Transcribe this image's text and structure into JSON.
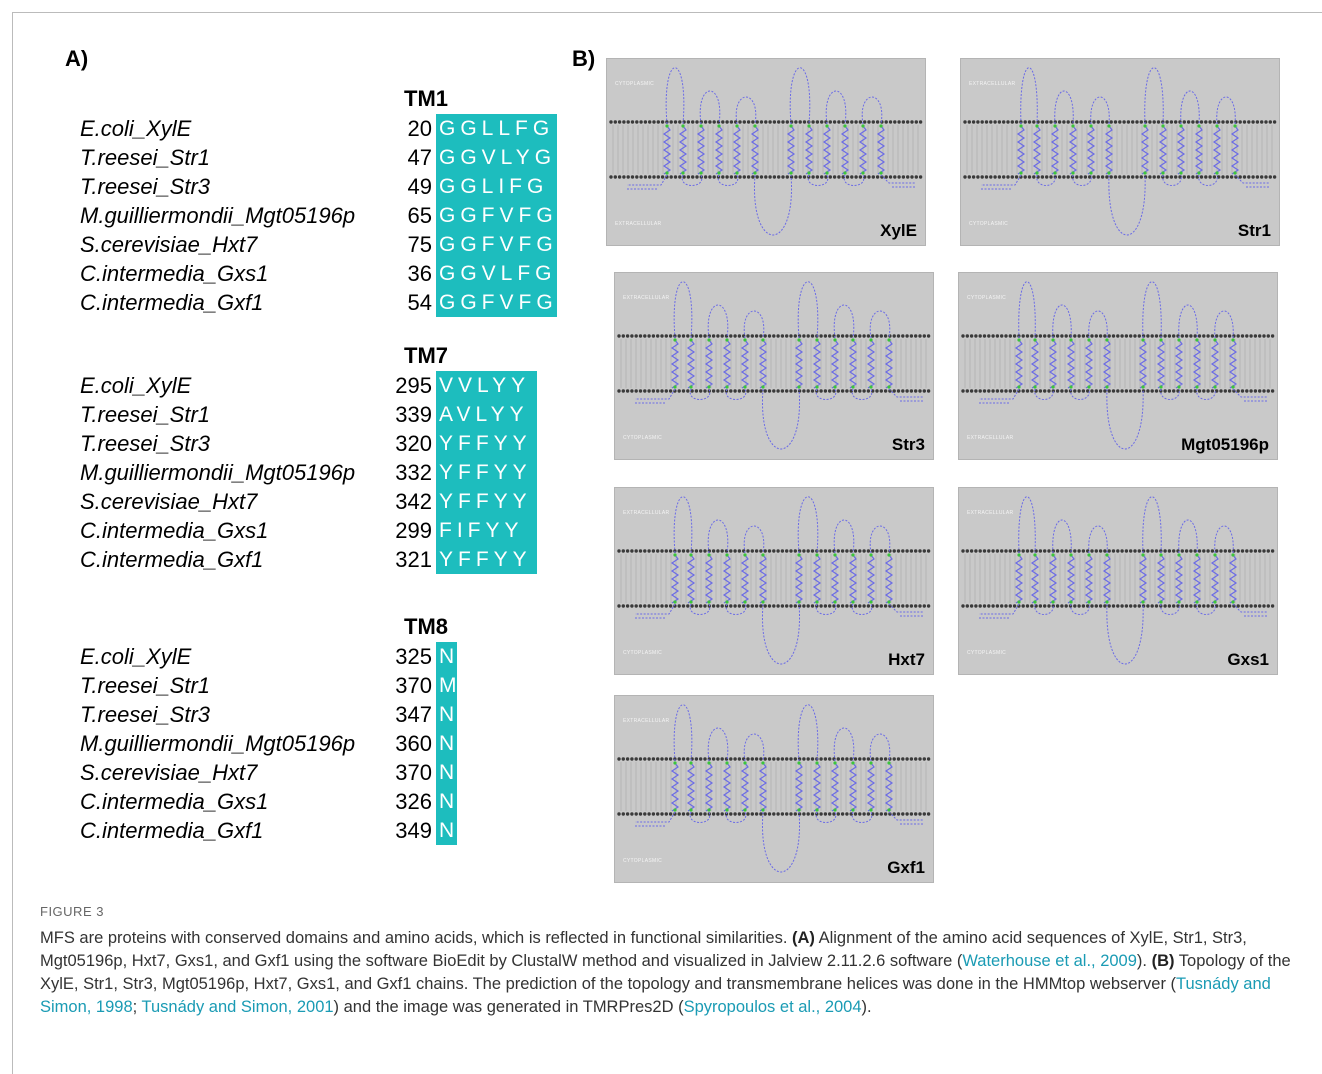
{
  "panel_a": {
    "label": "A)",
    "blocks": [
      {
        "title": "TM1",
        "rows": [
          {
            "name": "E.coli_XylE",
            "start": 20,
            "residues": "GGLLFG"
          },
          {
            "name": "T.reesei_Str1",
            "start": 47,
            "residues": "GGVLYG"
          },
          {
            "name": "T.reesei_Str3",
            "start": 49,
            "residues": "GGLIFG"
          },
          {
            "name": "M.guilliermondii_Mgt05196p",
            "start": 65,
            "residues": "GGFVFG"
          },
          {
            "name": "S.cerevisiae_Hxt7",
            "start": 75,
            "residues": "GGFVFG"
          },
          {
            "name": "C.intermedia_Gxs1",
            "start": 36,
            "residues": "GGVLFG"
          },
          {
            "name": "C.intermedia_Gxf1",
            "start": 54,
            "residues": "GGFVFG"
          }
        ]
      },
      {
        "title": "TM7",
        "rows": [
          {
            "name": "E.coli_XylE",
            "start": 295,
            "residues": "VVLYY"
          },
          {
            "name": "T.reesei_Str1",
            "start": 339,
            "residues": "AVLYY"
          },
          {
            "name": "T.reesei_Str3",
            "start": 320,
            "residues": "YFFYY"
          },
          {
            "name": "M.guilliermondii_Mgt05196p",
            "start": 332,
            "residues": "YFFYY"
          },
          {
            "name": "S.cerevisiae_Hxt7",
            "start": 342,
            "residues": "YFFYY"
          },
          {
            "name": "C.intermedia_Gxs1",
            "start": 299,
            "residues": "FIFYY"
          },
          {
            "name": "C.intermedia_Gxf1",
            "start": 321,
            "residues": "YFFYY"
          }
        ]
      },
      {
        "title": "TM8",
        "rows": [
          {
            "name": "E.coli_XylE",
            "start": 325,
            "residues": "N"
          },
          {
            "name": "T.reesei_Str1",
            "start": 370,
            "residues": "M"
          },
          {
            "name": "T.reesei_Str3",
            "start": 347,
            "residues": "N"
          },
          {
            "name": "M.guilliermondii_Mgt05196p",
            "start": 360,
            "residues": "N"
          },
          {
            "name": "S.cerevisiae_Hxt7",
            "start": 370,
            "residues": "N"
          },
          {
            "name": "C.intermedia_Gxs1",
            "start": 326,
            "residues": "N"
          },
          {
            "name": "C.intermedia_Gxf1",
            "start": 349,
            "residues": "N"
          }
        ]
      }
    ]
  },
  "panel_b": {
    "label": "B)",
    "panels": [
      {
        "name": "XylE",
        "top": "CYTOPLASMIC",
        "bottom": "EXTRACELLULAR"
      },
      {
        "name": "Str1",
        "top": "EXTRACELLULAR",
        "bottom": "CYTOPLASMIC"
      },
      {
        "name": "Str3",
        "top": "EXTRACELLULAR",
        "bottom": "CYTOPLASMIC"
      },
      {
        "name": "Mgt05196p",
        "top": "CYTOPLASMIC",
        "bottom": "EXTRACELLULAR"
      },
      {
        "name": "Hxt7",
        "top": "EXTRACELLULAR",
        "bottom": "CYTOPLASMIC"
      },
      {
        "name": "Gxs1",
        "top": "EXTRACELLULAR",
        "bottom": "CYTOPLASMIC"
      },
      {
        "name": "Gxf1",
        "top": "EXTRACELLULAR",
        "bottom": "CYTOPLASMIC"
      }
    ]
  },
  "caption": {
    "figure_label": "FIGURE 3",
    "segments": [
      "MFS are proteins with conserved domains and amino acids, which is reflected in functional similarities. ",
      "(A)",
      " Alignment of the amino acid sequences of XylE, Str1, Str3, Mgt05196p, Hxt7, Gxs1, and Gxf1 using the software BioEdit by ClustalW method and visualized in Jalview 2.11.2.6 software (",
      "Waterhouse et al., 2009",
      "). ",
      "(B)",
      " Topology of the XylE, Str1, Str3, Mgt05196p, Hxt7, Gxs1, and Gxf1 chains. The prediction of the topology and transmembrane helices was done in the HMMtop webserver (",
      "Tusnády and Simon, 1998",
      "; ",
      "Tusnády and Simon, 2001",
      ") and the image was generated in TMRPres2D (",
      "Spyropoulos et al., 2004",
      ")."
    ]
  }
}
